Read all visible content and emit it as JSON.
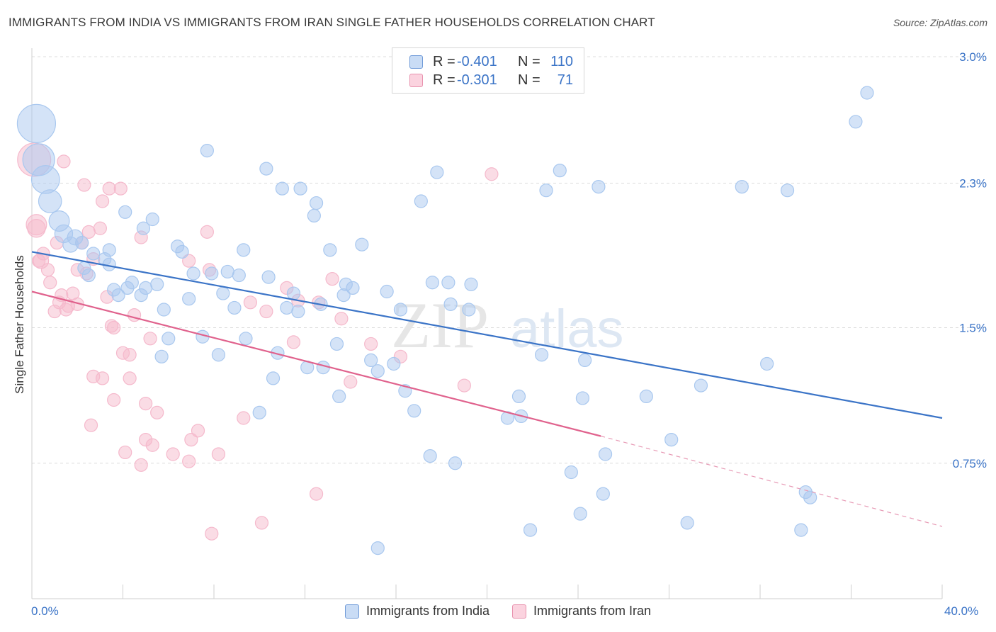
{
  "title": "IMMIGRANTS FROM INDIA VS IMMIGRANTS FROM IRAN SINGLE FATHER HOUSEHOLDS CORRELATION CHART",
  "source": "Source: ZipAtlas.com",
  "watermark": {
    "zip": "ZIP",
    "atlas": "atlas"
  },
  "legend_top": [
    {
      "r_label": "R =",
      "r_value": "-0.401",
      "n_label": "N =",
      "n_value": "110",
      "color": "#a9c8ef"
    },
    {
      "r_label": "R =",
      "r_value": "-0.301",
      "n_label": "N =",
      "n_value": "71",
      "color": "#f5b9cc"
    }
  ],
  "legend_bottom": [
    "Immigrants from India",
    "Immigrants from Iran"
  ],
  "x_tick_labels": {
    "left": "0.0%",
    "right": "40.0%"
  },
  "chart_data": {
    "type": "scatter",
    "title": "IMMIGRANTS FROM INDIA VS IMMIGRANTS FROM IRAN SINGLE FATHER HOUSEHOLDS CORRELATION CHART",
    "xlabel": "",
    "ylabel": "Single Father Households",
    "xlim": [
      0,
      40
    ],
    "ylim": [
      0,
      3.0
    ],
    "y_ticks": [
      0.75,
      1.5,
      2.3,
      3.0
    ],
    "y_tick_labels": [
      "0.75%",
      "1.5%",
      "2.3%",
      "3.0%"
    ],
    "x_ticks": [
      0,
      4,
      8,
      12,
      16,
      20,
      24,
      28,
      32,
      36,
      40
    ],
    "grid": "horizontal dashed",
    "series": [
      {
        "name": "Immigrants from India",
        "color": "#3b74c7",
        "fill": "#a9c8ef",
        "trend": {
          "x0": 0,
          "y0": 1.92,
          "x1": 40,
          "y1": 1.0
        },
        "points": [
          [
            0.2,
            2.63,
            3
          ],
          [
            0.3,
            2.43,
            2.5
          ],
          [
            0.6,
            2.32,
            2.2
          ],
          [
            0.8,
            2.2,
            1.8
          ],
          [
            1.2,
            2.09,
            1.6
          ],
          [
            1.4,
            2.02,
            1.4
          ],
          [
            1.7,
            1.96,
            1.2
          ],
          [
            1.9,
            2.0,
            1.2
          ],
          [
            2.2,
            1.97,
            1
          ],
          [
            2.3,
            1.83,
            1
          ],
          [
            2.5,
            1.79,
            1
          ],
          [
            2.7,
            1.91,
            1
          ],
          [
            3.2,
            1.88,
            1
          ],
          [
            3.4,
            1.85,
            1
          ],
          [
            3.4,
            1.93,
            1
          ],
          [
            3.6,
            1.71,
            1
          ],
          [
            3.8,
            1.68,
            1
          ],
          [
            4.1,
            2.14,
            1
          ],
          [
            4.2,
            1.72,
            1
          ],
          [
            4.4,
            1.75,
            1
          ],
          [
            4.8,
            1.68,
            1
          ],
          [
            4.9,
            2.05,
            1
          ],
          [
            5.0,
            1.72,
            1
          ],
          [
            5.3,
            2.1,
            1
          ],
          [
            5.5,
            1.74,
            1
          ],
          [
            5.8,
            1.6,
            1
          ],
          [
            6.0,
            1.44,
            1
          ],
          [
            5.7,
            1.34,
            1
          ],
          [
            6.4,
            1.95,
            1
          ],
          [
            6.6,
            1.92,
            1
          ],
          [
            6.9,
            1.66,
            1
          ],
          [
            7.1,
            1.8,
            1
          ],
          [
            7.5,
            1.45,
            1
          ],
          [
            7.7,
            2.48,
            1
          ],
          [
            7.9,
            1.8,
            1
          ],
          [
            8.2,
            1.35,
            1
          ],
          [
            8.4,
            1.69,
            1
          ],
          [
            8.6,
            1.81,
            1
          ],
          [
            8.9,
            1.61,
            1
          ],
          [
            9.1,
            1.79,
            1
          ],
          [
            9.3,
            1.93,
            1
          ],
          [
            9.4,
            1.44,
            1
          ],
          [
            10.0,
            1.03,
            1
          ],
          [
            10.3,
            2.38,
            1
          ],
          [
            10.4,
            1.78,
            1
          ],
          [
            10.6,
            1.22,
            1
          ],
          [
            10.8,
            1.36,
            1
          ],
          [
            11.0,
            2.27,
            1
          ],
          [
            11.2,
            1.61,
            1
          ],
          [
            11.5,
            1.69,
            1
          ],
          [
            11.7,
            1.59,
            1
          ],
          [
            11.8,
            2.27,
            1
          ],
          [
            12.1,
            1.28,
            1
          ],
          [
            12.4,
            2.12,
            1
          ],
          [
            12.5,
            2.19,
            1
          ],
          [
            12.7,
            1.63,
            1
          ],
          [
            12.8,
            1.28,
            1
          ],
          [
            13.1,
            1.93,
            1
          ],
          [
            13.4,
            1.41,
            1
          ],
          [
            13.5,
            1.12,
            1
          ],
          [
            13.7,
            1.68,
            1
          ],
          [
            13.8,
            1.74,
            1
          ],
          [
            14.1,
            1.72,
            1
          ],
          [
            14.5,
            1.96,
            1
          ],
          [
            14.9,
            1.32,
            1
          ],
          [
            15.2,
            1.26,
            1
          ],
          [
            15.2,
            0.28,
            1
          ],
          [
            15.6,
            1.7,
            1
          ],
          [
            15.9,
            1.3,
            1
          ],
          [
            16.2,
            1.6,
            1
          ],
          [
            16.4,
            1.15,
            1
          ],
          [
            16.8,
            1.04,
            1
          ],
          [
            17.1,
            2.2,
            1
          ],
          [
            17.6,
            1.75,
            1
          ],
          [
            17.5,
            0.79,
            1
          ],
          [
            17.8,
            2.36,
            1
          ],
          [
            18.3,
            1.75,
            1
          ],
          [
            18.4,
            1.63,
            1
          ],
          [
            18.6,
            0.75,
            1
          ],
          [
            19.2,
            1.6,
            1
          ],
          [
            19.3,
            1.74,
            1
          ],
          [
            20.9,
            1.0,
            1
          ],
          [
            21.4,
            1.12,
            1
          ],
          [
            21.5,
            1.01,
            1
          ],
          [
            21.9,
            0.38,
            1
          ],
          [
            22.4,
            1.35,
            1
          ],
          [
            22.6,
            2.26,
            1
          ],
          [
            23.2,
            2.37,
            1
          ],
          [
            23.7,
            0.7,
            1
          ],
          [
            24.1,
            0.47,
            1
          ],
          [
            24.2,
            1.11,
            1
          ],
          [
            24.3,
            1.32,
            1
          ],
          [
            24.9,
            2.28,
            1
          ],
          [
            25.1,
            0.58,
            1
          ],
          [
            25.2,
            0.8,
            1
          ],
          [
            27.0,
            1.12,
            1
          ],
          [
            28.1,
            0.88,
            1
          ],
          [
            28.8,
            0.42,
            1
          ],
          [
            29.4,
            1.18,
            1
          ],
          [
            31.2,
            2.28,
            1
          ],
          [
            32.3,
            1.3,
            1
          ],
          [
            33.2,
            2.26,
            1
          ],
          [
            34.0,
            0.59,
            1
          ],
          [
            34.2,
            0.56,
            1
          ],
          [
            33.8,
            0.38,
            1
          ],
          [
            36.2,
            2.64,
            1
          ],
          [
            36.7,
            2.8,
            1
          ]
        ]
      },
      {
        "name": "Immigrants from Iran",
        "color": "#e0628d",
        "fill": "#f5b9cc",
        "trend": {
          "x0": 0,
          "y0": 1.7,
          "x1": 25.0,
          "y1": 0.9,
          "dashed_to": {
            "x": 40,
            "y": 0.4
          }
        },
        "points": [
          [
            0.1,
            2.43,
            2.6
          ],
          [
            0.2,
            2.07,
            1.6
          ],
          [
            0.4,
            1.87,
            1.2
          ],
          [
            0.5,
            1.91,
            1
          ],
          [
            0.7,
            1.82,
            1
          ],
          [
            0.8,
            1.75,
            1
          ],
          [
            1.0,
            1.59,
            1
          ],
          [
            1.1,
            1.97,
            1
          ],
          [
            1.2,
            1.64,
            1
          ],
          [
            1.3,
            1.68,
            1
          ],
          [
            1.4,
            2.42,
            1
          ],
          [
            1.5,
            1.6,
            1
          ],
          [
            1.6,
            1.62,
            1
          ],
          [
            1.8,
            1.69,
            1
          ],
          [
            2.0,
            1.63,
            1
          ],
          [
            2.0,
            1.82,
            1
          ],
          [
            2.2,
            1.97,
            1
          ],
          [
            2.3,
            2.29,
            1
          ],
          [
            2.4,
            1.8,
            1
          ],
          [
            2.5,
            2.03,
            1
          ],
          [
            2.6,
            0.96,
            1
          ],
          [
            2.7,
            1.23,
            1
          ],
          [
            3.0,
            2.05,
            1
          ],
          [
            3.1,
            2.2,
            1
          ],
          [
            3.1,
            1.22,
            1
          ],
          [
            3.3,
            1.67,
            1
          ],
          [
            3.4,
            2.27,
            1
          ],
          [
            3.5,
            1.51,
            1
          ],
          [
            3.6,
            1.5,
            1
          ],
          [
            3.6,
            1.1,
            1
          ],
          [
            3.9,
            2.27,
            1
          ],
          [
            4.0,
            1.36,
            1
          ],
          [
            4.1,
            0.81,
            1
          ],
          [
            4.3,
            1.22,
            1
          ],
          [
            4.3,
            1.35,
            1
          ],
          [
            4.5,
            1.57,
            1
          ],
          [
            4.8,
            2.0,
            1
          ],
          [
            4.8,
            0.74,
            1
          ],
          [
            5.0,
            0.88,
            1
          ],
          [
            5.0,
            1.08,
            1
          ],
          [
            5.2,
            1.44,
            1
          ],
          [
            5.3,
            0.85,
            1
          ],
          [
            5.5,
            1.03,
            1
          ],
          [
            6.2,
            0.8,
            1
          ],
          [
            6.9,
            1.87,
            1
          ],
          [
            6.9,
            0.76,
            1
          ],
          [
            7.0,
            0.88,
            1
          ],
          [
            7.3,
            0.93,
            1
          ],
          [
            7.7,
            2.03,
            1
          ],
          [
            7.8,
            1.82,
            1
          ],
          [
            7.9,
            0.36,
            1
          ],
          [
            8.2,
            0.8,
            1
          ],
          [
            9.3,
            1.0,
            1
          ],
          [
            9.6,
            1.64,
            1
          ],
          [
            10.1,
            0.42,
            1
          ],
          [
            10.3,
            1.59,
            1
          ],
          [
            11.2,
            1.72,
            1
          ],
          [
            11.5,
            1.42,
            1
          ],
          [
            11.7,
            1.65,
            1
          ],
          [
            12.5,
            0.58,
            1
          ],
          [
            12.6,
            1.64,
            1
          ],
          [
            13.2,
            1.77,
            1
          ],
          [
            13.6,
            1.55,
            1
          ],
          [
            14.0,
            1.2,
            1
          ],
          [
            14.9,
            1.41,
            1
          ],
          [
            16.2,
            1.34,
            1
          ],
          [
            19.0,
            1.18,
            1
          ],
          [
            20.2,
            2.35,
            1
          ],
          [
            0.2,
            2.05,
            1.4
          ],
          [
            0.3,
            1.87,
            1
          ],
          [
            2.7,
            1.88,
            1
          ]
        ]
      }
    ]
  }
}
